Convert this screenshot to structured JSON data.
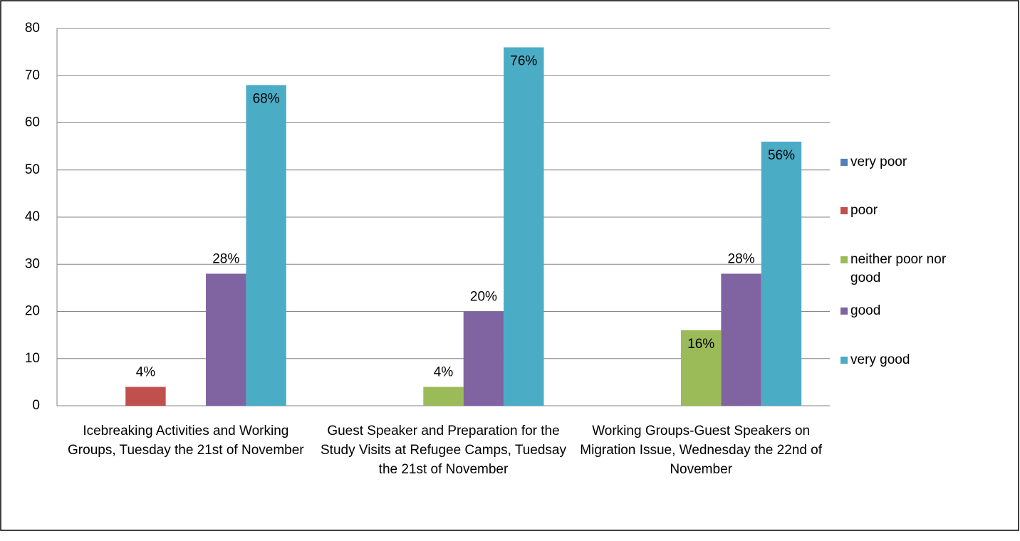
{
  "chart_data": {
    "type": "bar",
    "categories": [
      "Icebreaking Activities and Working Groups, Tuesday the 21st of November",
      "Guest Speaker and Preparation for the Study Visits at Refugee Camps, Tuedsay the 21st of November",
      "Working Groups-Guest Speakers on Migration Issue, Wednesday the 22nd of November"
    ],
    "series": [
      {
        "name": "very poor",
        "color": "#4f81bd",
        "values": [
          0,
          0,
          0
        ],
        "value_labels": [
          null,
          null,
          null
        ]
      },
      {
        "name": "poor",
        "color": "#c0504d",
        "values": [
          4,
          0,
          0
        ],
        "value_labels": [
          "4%",
          null,
          null
        ]
      },
      {
        "name": "neither poor nor good",
        "color": "#9bbb59",
        "values": [
          0,
          4,
          16
        ],
        "value_labels": [
          null,
          "4%",
          "16%"
        ]
      },
      {
        "name": "good",
        "color": "#8064a2",
        "values": [
          28,
          20,
          28
        ],
        "value_labels": [
          "28%",
          "20%",
          "28%"
        ]
      },
      {
        "name": "very good",
        "color": "#4bacc6",
        "values": [
          68,
          76,
          56
        ],
        "value_labels": [
          "68%",
          "76%",
          "56%"
        ]
      }
    ],
    "ylim": [
      0,
      80
    ],
    "yticks": [
      0,
      10,
      20,
      30,
      40,
      50,
      60,
      70,
      80
    ],
    "grid": true,
    "legend": "right"
  }
}
